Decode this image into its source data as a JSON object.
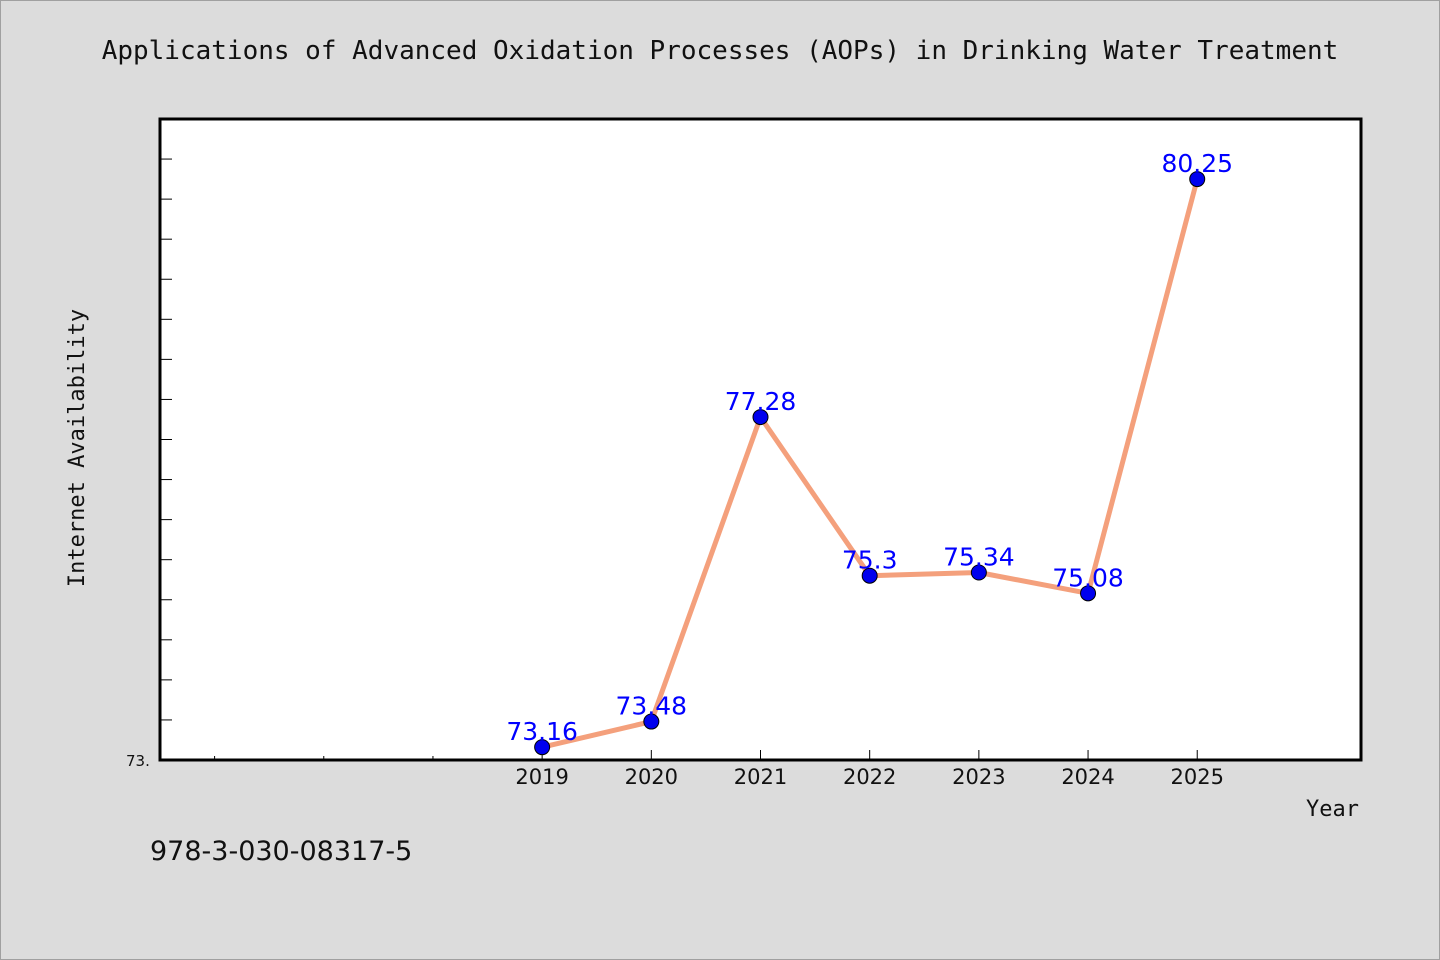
{
  "chart_title": "Applications of Advanced Oxidation Processes (AOPs) in Drinking Water Treatment",
  "footer_note": "978-3-030-08317-5",
  "chart_data": {
    "type": "line",
    "title": "Applications of Advanced Oxidation Processes (AOPs) in Drinking Water Treatment",
    "xlabel": "Year",
    "ylabel": "Internet Availability",
    "categories": [
      "2019",
      "2020",
      "2021",
      "2022",
      "2023",
      "2024",
      "2025"
    ],
    "values": [
      73.16,
      73.48,
      77.28,
      75.3,
      75.34,
      75.08,
      80.25
    ],
    "data_labels": [
      "73.16",
      "73.48",
      "77.28",
      "75.3",
      "75.34",
      "75.08",
      "80.25"
    ],
    "y_tick_label": "73.",
    "ylim": [
      73.0,
      81.0
    ],
    "xlim": [
      2015.5,
      2026.5
    ],
    "grid": false,
    "legend": "none",
    "line_color": "#f4a07c",
    "marker_color": "#0000ee",
    "label_color": "#0000ff"
  }
}
